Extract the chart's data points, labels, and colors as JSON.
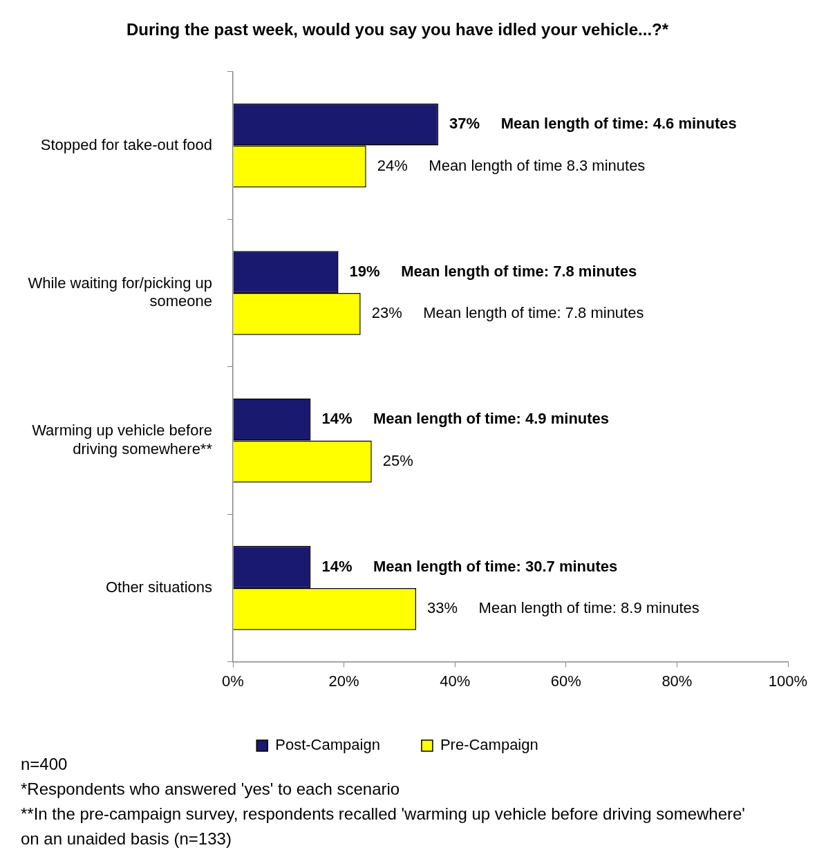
{
  "chart_data": {
    "type": "bar",
    "orientation": "horizontal",
    "title": "During the past week, would you say you have idled your vehicle...?*",
    "categories": [
      "Stopped for take-out food",
      "While waiting for/picking up someone",
      "Warming up vehicle before driving somewhere**",
      "Other situations"
    ],
    "series": [
      {
        "name": "Post-Campaign",
        "color": "#191970",
        "values": [
          37,
          19,
          14,
          14
        ],
        "value_labels": [
          "37%     Mean length of time: 4.6 minutes",
          "19%     Mean length of time: 7.8 minutes",
          "14%     Mean length of time: 4.9 minutes",
          "14%     Mean length of time: 30.7 minutes"
        ]
      },
      {
        "name": "Pre-Campaign",
        "color": "#ffff00",
        "values": [
          24,
          23,
          25,
          33
        ],
        "value_labels": [
          "24%     Mean length of time 8.3 minutes",
          "23%     Mean length of time: 7.8 minutes",
          "25%",
          "33%     Mean length of time: 8.9 minutes"
        ]
      }
    ],
    "xlim": [
      0,
      100
    ],
    "xticks": [
      {
        "value": 0,
        "label": "0%"
      },
      {
        "value": 20,
        "label": "20%"
      },
      {
        "value": 40,
        "label": "40%"
      },
      {
        "value": 60,
        "label": "60%"
      },
      {
        "value": 80,
        "label": "80%"
      },
      {
        "value": 100,
        "label": "100%"
      }
    ],
    "grid": false,
    "legend": "bottom",
    "annotations": [
      "n=400",
      "*Respondents who answered 'yes' to each scenario",
      "**In the pre-campaign survey, respondents recalled 'warming up vehicle before driving somewhere' on an unaided basis  (n=133)"
    ]
  }
}
